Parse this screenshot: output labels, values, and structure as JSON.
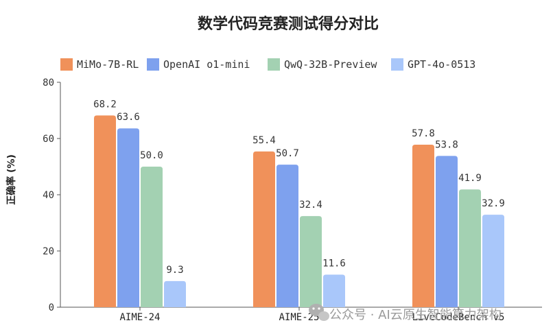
{
  "chart_data": {
    "type": "bar",
    "title": "数学代码竞赛测试得分对比",
    "ylabel": "正确率 (%)",
    "xlabel": "",
    "ylim": [
      0,
      80
    ],
    "yticks": [
      0,
      20,
      40,
      60,
      80
    ],
    "grid": false,
    "legend_position": "top",
    "categories": [
      "AIME-24",
      "AIME-25",
      "LiveCodeBench v5"
    ],
    "series": [
      {
        "name": "MiMo-7B-RL",
        "color": "#f0915a",
        "values": [
          68.2,
          55.4,
          57.8
        ]
      },
      {
        "name": "OpenAI o1-mini",
        "color": "#7ea1ee",
        "values": [
          63.6,
          50.7,
          53.8
        ]
      },
      {
        "name": "QwQ-32B-Preview",
        "color": "#a3d1b2",
        "values": [
          50.0,
          32.4,
          41.9
        ]
      },
      {
        "name": "GPT-4o-0513",
        "color": "#a9c7fa",
        "values": [
          9.3,
          11.6,
          32.9
        ]
      }
    ],
    "data_labels": [
      [
        "68.2",
        "55.4",
        "57.8"
      ],
      [
        "63.6",
        "50.7",
        "53.8"
      ],
      [
        "50.0",
        "32.4",
        "41.9"
      ],
      [
        "9.3",
        "11.6",
        "32.9"
      ]
    ]
  },
  "watermark": {
    "icon": "wechat-icon",
    "text": "公众号 · AI云原生智能算力架构"
  }
}
